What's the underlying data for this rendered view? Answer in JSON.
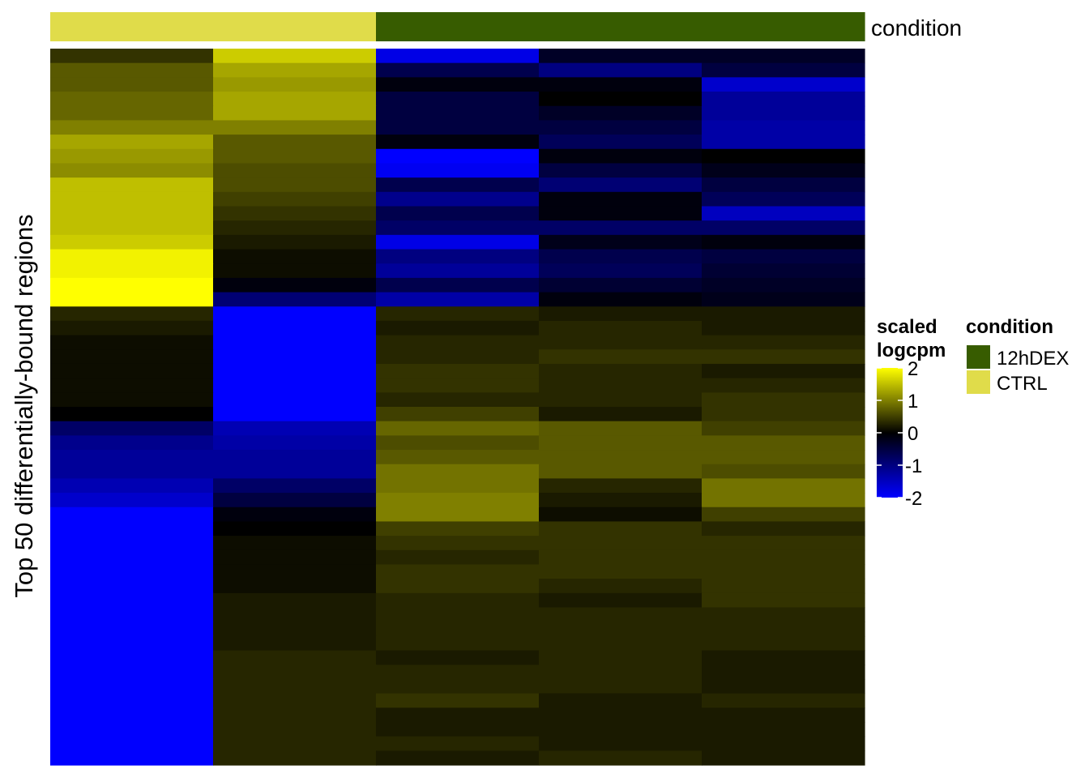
{
  "chart_data": {
    "type": "heatmap",
    "ylabel": "Top 50 differentially-bound regions",
    "annotation": {
      "label": "condition",
      "columns": [
        "CTRL",
        "CTRL",
        "12hDEX",
        "12hDEX",
        "12hDEX"
      ]
    },
    "colorbar": {
      "title": [
        "scaled",
        "logcpm"
      ],
      "range": [
        -2,
        2
      ],
      "ticks": [
        2,
        1,
        0,
        -1,
        -2
      ],
      "colors": {
        "low": "#0000ff",
        "mid": "#000000",
        "high": "#ffff00"
      }
    },
    "legend": {
      "title": "condition",
      "items": [
        {
          "label": "12hDEX",
          "color": "#375c00"
        },
        {
          "label": "CTRL",
          "color": "#e0dc4a"
        }
      ]
    },
    "values": [
      [
        0.4,
        1.6,
        -1.8,
        -0.3,
        -0.3
      ],
      [
        0.7,
        1.3,
        -0.6,
        -1.0,
        -0.5
      ],
      [
        0.7,
        1.2,
        -0.1,
        -0.1,
        -1.6
      ],
      [
        0.8,
        1.3,
        -0.5,
        0.0,
        -1.2
      ],
      [
        0.8,
        1.3,
        -0.5,
        -0.3,
        -1.2
      ],
      [
        1.0,
        1.0,
        -0.5,
        -0.5,
        -1.3
      ],
      [
        1.3,
        0.7,
        -0.1,
        -0.7,
        -1.3
      ],
      [
        1.2,
        0.7,
        -2.0,
        -0.1,
        0.0
      ],
      [
        1.1,
        0.6,
        -1.9,
        -0.5,
        -0.2
      ],
      [
        1.5,
        0.6,
        -0.6,
        -0.9,
        -0.5
      ],
      [
        1.5,
        0.5,
        -1.1,
        -0.1,
        -0.7
      ],
      [
        1.5,
        0.4,
        -0.6,
        -0.1,
        -1.5
      ],
      [
        1.5,
        0.3,
        -0.8,
        -0.8,
        -0.8
      ],
      [
        1.6,
        0.2,
        -1.8,
        -0.2,
        -0.1
      ],
      [
        1.9,
        0.1,
        -1.0,
        -0.6,
        -0.5
      ],
      [
        1.9,
        0.1,
        -1.2,
        -0.7,
        -0.4
      ],
      [
        2.0,
        -0.1,
        -0.6,
        -0.4,
        -0.3
      ],
      [
        2.1,
        -0.9,
        -1.3,
        -0.1,
        -0.2
      ],
      [
        0.3,
        -2.0,
        0.3,
        0.2,
        0.2
      ],
      [
        0.2,
        -2.0,
        0.2,
        0.3,
        0.2
      ],
      [
        0.1,
        -2.0,
        0.3,
        0.3,
        0.3
      ],
      [
        0.1,
        -2.0,
        0.3,
        0.4,
        0.4
      ],
      [
        0.1,
        -2.0,
        0.4,
        0.3,
        0.2
      ],
      [
        0.1,
        -2.0,
        0.4,
        0.3,
        0.3
      ],
      [
        0.1,
        -2.0,
        0.3,
        0.3,
        0.4
      ],
      [
        0.0,
        -2.0,
        0.5,
        0.2,
        0.4
      ],
      [
        -0.8,
        -1.4,
        0.8,
        0.7,
        0.5
      ],
      [
        -1.1,
        -1.3,
        0.6,
        0.7,
        0.7
      ],
      [
        -1.2,
        -1.2,
        0.7,
        0.7,
        0.7
      ],
      [
        -1.2,
        -1.2,
        0.9,
        0.7,
        0.6
      ],
      [
        -1.4,
        -0.8,
        0.9,
        0.3,
        0.9
      ],
      [
        -1.6,
        -0.5,
        1.0,
        0.2,
        0.9
      ],
      [
        -2.0,
        -0.1,
        1.0,
        0.1,
        0.5
      ],
      [
        -2.0,
        0.0,
        0.5,
        0.4,
        0.3
      ],
      [
        -2.0,
        0.1,
        0.4,
        0.4,
        0.4
      ],
      [
        -2.0,
        0.1,
        0.3,
        0.4,
        0.4
      ],
      [
        -2.0,
        0.1,
        0.4,
        0.4,
        0.4
      ],
      [
        -2.0,
        0.1,
        0.4,
        0.3,
        0.4
      ],
      [
        -2.0,
        0.2,
        0.3,
        0.2,
        0.4
      ],
      [
        -2.0,
        0.2,
        0.3,
        0.3,
        0.3
      ],
      [
        -2.0,
        0.2,
        0.3,
        0.3,
        0.3
      ],
      [
        -2.0,
        0.2,
        0.3,
        0.3,
        0.3
      ],
      [
        -2.0,
        0.3,
        0.2,
        0.3,
        0.2
      ],
      [
        -2.0,
        0.3,
        0.3,
        0.3,
        0.2
      ],
      [
        -2.0,
        0.3,
        0.3,
        0.3,
        0.2
      ],
      [
        -2.0,
        0.3,
        0.4,
        0.2,
        0.3
      ],
      [
        -2.0,
        0.3,
        0.2,
        0.2,
        0.2
      ],
      [
        -2.0,
        0.3,
        0.2,
        0.2,
        0.2
      ],
      [
        -2.0,
        0.3,
        0.3,
        0.2,
        0.2
      ],
      [
        -2.0,
        0.3,
        0.2,
        0.3,
        0.2
      ]
    ]
  }
}
